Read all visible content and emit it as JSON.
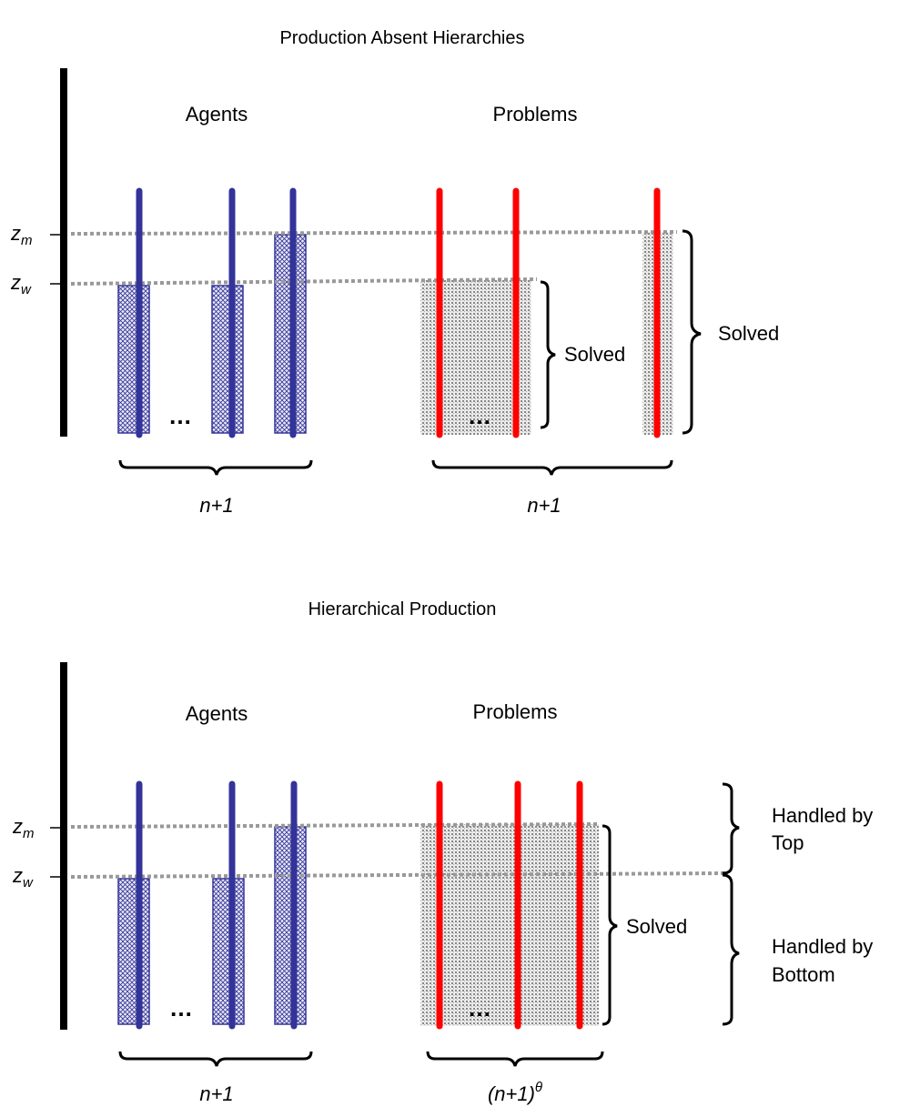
{
  "colors": {
    "agent": "#333399",
    "problem": "#ff0000",
    "guide": "#999999",
    "axis": "#000000"
  },
  "top": {
    "title": "Production Absent Hierarchies",
    "agents_label": "Agents",
    "problems_label": "Problems",
    "zm": {
      "base": "z",
      "sub": "m"
    },
    "zw": {
      "base": "z",
      "sub": "w"
    },
    "agents_count": "n+1",
    "problems_count": "n+1",
    "solved_inner": "Solved",
    "solved_outer": "Solved",
    "ellipsis_agents": "…",
    "ellipsis_problems": "…"
  },
  "bottom": {
    "title": "Hierarchical Production",
    "agents_label": "Agents",
    "problems_label": "Problems",
    "zm": {
      "base": "z",
      "sub": "m"
    },
    "zw": {
      "base": "z",
      "sub": "w"
    },
    "agents_count": "n+1",
    "problems_count": "(n+1)",
    "problems_count_sup": "θ",
    "solved": "Solved",
    "handled_top_1": "Handled by",
    "handled_top_2": "Top",
    "handled_bottom_1": "Handled by",
    "handled_bottom_2": "Bottom",
    "ellipsis_agents": "…",
    "ellipsis_problems": "…"
  }
}
